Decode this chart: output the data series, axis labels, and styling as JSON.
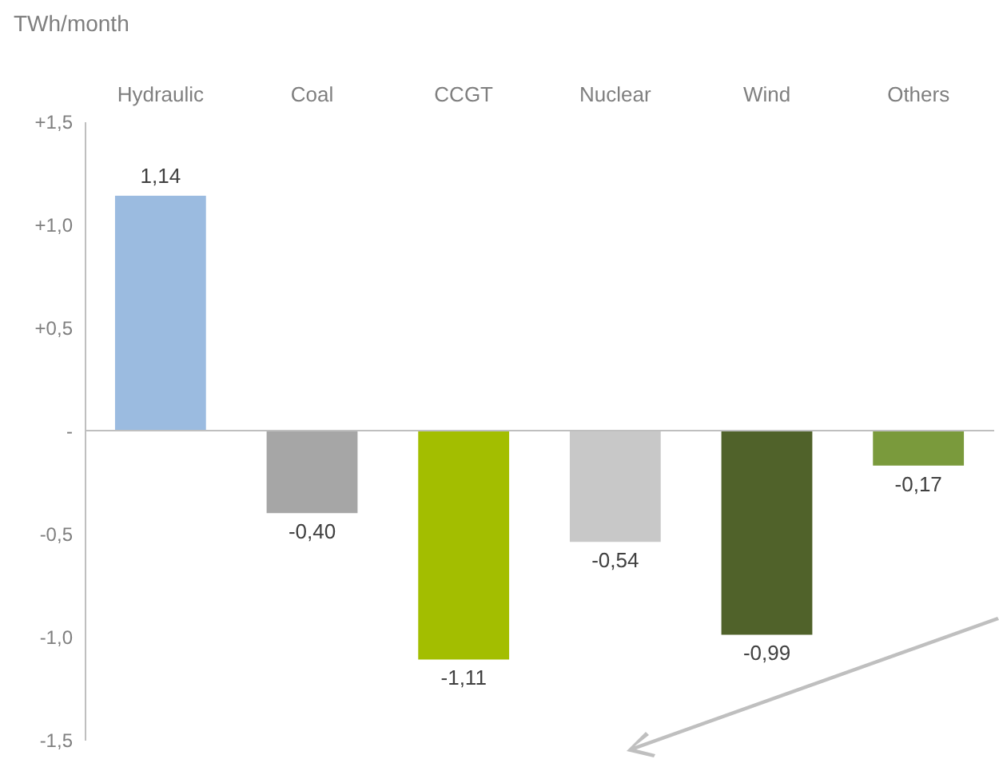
{
  "chart_data": {
    "type": "bar",
    "ylabel": "TWh/month",
    "categories": [
      "Hydraulic",
      "Coal",
      "CCGT",
      "Nuclear",
      "Wind",
      "Others"
    ],
    "values": [
      1.14,
      -0.4,
      -1.11,
      -0.54,
      -0.99,
      -0.17
    ],
    "colors": [
      "#9bbbe0",
      "#a6a6a6",
      "#a3be00",
      "#c8c8c8",
      "#50622a",
      "#7a9a3c"
    ],
    "value_labels": [
      "1,14",
      "-0,40",
      "-1,11",
      "-0,54",
      "-0,99",
      "-0,17"
    ],
    "ylim": [
      -1.5,
      1.5
    ],
    "yticks": [
      {
        "value": 1.5,
        "label": "+1,5"
      },
      {
        "value": 1,
        "label": "+1,0"
      },
      {
        "value": 0.5,
        "label": "+0,5"
      },
      {
        "value": 0,
        "label": "-"
      },
      {
        "value": -0.5,
        "label": "-0,5"
      },
      {
        "value": -1,
        "label": "-1,0"
      },
      {
        "value": -1.5,
        "label": "-1,5"
      }
    ],
    "ref_lines": [
      {
        "axis": "y",
        "value": 0,
        "color": "#bfbfbf"
      }
    ],
    "grid": false
  }
}
